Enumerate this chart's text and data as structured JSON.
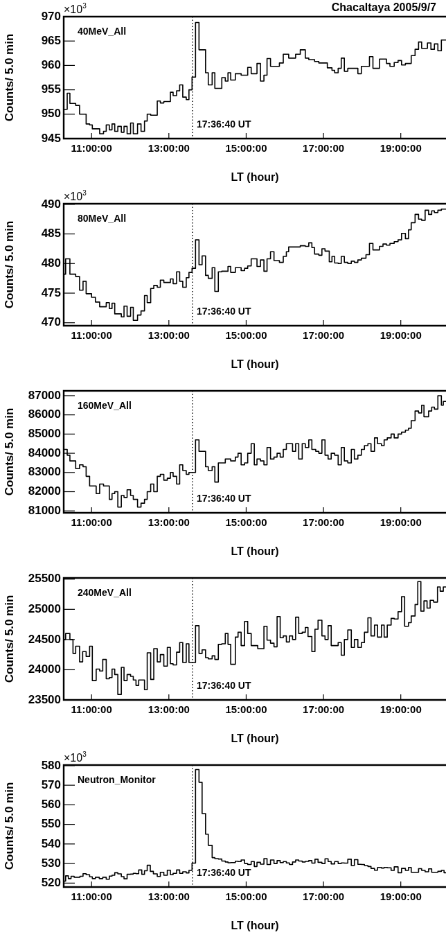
{
  "chart_data": [
    {
      "type": "histogram",
      "title": "Chacaltaya 2005/9/7",
      "subtitle": "40MeV_All",
      "xlabel": "LT (hour)",
      "ylabel": "Counts/ 5.0 min",
      "annotations": [
        "×10$^{3}$",
        "17:36:40 UT"
      ],
      "xlim": [
        10.28,
        20.17
      ],
      "xticks": [
        {
          "value": 11,
          "label": "11:00:00"
        },
        {
          "value": 13,
          "label": "13:00:00"
        },
        {
          "value": 15,
          "label": "15:00:00"
        },
        {
          "value": 17,
          "label": "17:00:00"
        },
        {
          "value": 19,
          "label": "19:00:00"
        }
      ],
      "ylim": [
        945,
        970
      ],
      "yticks": [
        945,
        950,
        955,
        960,
        965,
        970
      ],
      "ref_lines": [
        {
          "axis": "x",
          "value": 13.611,
          "line_style": "dotted",
          "color": "#000000"
        }
      ],
      "bins": [
        10.28,
        10.37,
        10.44,
        10.59,
        10.69,
        10.86,
        10.95,
        11.02,
        11.21,
        11.31,
        11.38,
        11.46,
        11.53,
        11.6,
        11.68,
        11.77,
        11.84,
        11.92,
        12.01,
        12.08,
        12.19,
        12.28,
        12.37,
        12.44,
        12.53,
        12.7,
        12.78,
        12.87,
        13.04,
        13.11,
        13.2,
        13.28,
        13.36,
        13.45,
        13.52,
        13.6,
        13.69,
        13.78,
        13.95,
        14.02,
        14.12,
        14.19,
        14.37,
        14.46,
        14.53,
        14.6,
        14.72,
        14.87,
        15.04,
        15.13,
        15.28,
        15.37,
        15.46,
        15.54,
        15.63,
        15.86,
        15.96,
        16.1,
        16.28,
        16.4,
        16.53,
        16.62,
        16.77,
        16.88,
        17.1,
        17.22,
        17.29,
        17.38,
        17.46,
        17.54,
        17.63,
        17.89,
        17.98,
        18.19,
        18.28,
        18.45,
        18.63,
        18.72,
        18.83,
        18.93,
        19.02,
        19.12,
        19.27,
        19.37,
        19.46,
        19.54,
        19.69,
        19.78,
        19.87,
        19.96,
        20.05,
        20.17
      ],
      "series": [
        {
          "color": "#000000",
          "values": [
            951,
            954.3,
            952.2,
            951.8,
            950,
            948,
            947.8,
            947,
            946,
            946.5,
            947.8,
            946.8,
            948,
            946.5,
            947.5,
            946.3,
            947.5,
            946,
            948.2,
            946,
            948,
            946.5,
            948.6,
            950,
            949.8,
            952.7,
            952.3,
            952.6,
            954.5,
            953.8,
            954.8,
            956,
            953.5,
            953,
            955,
            957.6,
            968.8,
            963.2,
            958.5,
            956,
            958.5,
            955.3,
            957.5,
            956.8,
            958.5,
            957,
            958.3,
            958,
            959.6,
            958.3,
            960.4,
            956.8,
            958,
            961.4,
            959.8,
            960.5,
            962.3,
            961.5,
            962.3,
            963.2,
            961.5,
            961.2,
            960.8,
            960.5,
            959.5,
            959,
            958.5,
            959.4,
            961.5,
            958.8,
            959.4,
            958.3,
            959.8,
            961.8,
            959.4,
            961.3,
            960.4,
            959.8,
            960.6,
            961,
            960.1,
            960.4,
            962,
            963.3,
            964.8,
            963.5,
            964.6,
            963.3,
            964.4,
            963,
            965.2
          ]
        }
      ]
    },
    {
      "type": "histogram",
      "subtitle": "80MeV_All",
      "xlabel": "LT (hour)",
      "ylabel": "Counts/ 5.0 min",
      "annotations": [
        "×10$^{3}$",
        "17:36:40 UT"
      ],
      "xlim": [
        10.28,
        20.17
      ],
      "xticks": [
        {
          "value": 11,
          "label": "11:00:00"
        },
        {
          "value": 13,
          "label": "13:00:00"
        },
        {
          "value": 15,
          "label": "15:00:00"
        },
        {
          "value": 17,
          "label": "17:00:00"
        },
        {
          "value": 19,
          "label": "19:00:00"
        }
      ],
      "ylim": [
        469.5,
        490.1
      ],
      "yticks": [
        470,
        475,
        480,
        485,
        490
      ],
      "ref_lines": [
        {
          "axis": "x",
          "value": 13.611,
          "line_style": "dotted",
          "color": "#000000"
        }
      ],
      "bins": [
        10.28,
        10.33,
        10.44,
        10.59,
        10.69,
        10.78,
        10.86,
        11.0,
        11.1,
        11.21,
        11.38,
        11.46,
        11.53,
        11.6,
        11.77,
        11.84,
        11.92,
        12.01,
        12.08,
        12.19,
        12.28,
        12.37,
        12.44,
        12.53,
        12.61,
        12.7,
        12.78,
        12.87,
        13.04,
        13.11,
        13.2,
        13.28,
        13.36,
        13.45,
        13.52,
        13.6,
        13.69,
        13.78,
        13.86,
        13.95,
        14.02,
        14.12,
        14.19,
        14.28,
        14.37,
        14.53,
        14.6,
        14.72,
        14.87,
        14.96,
        15.04,
        15.13,
        15.28,
        15.37,
        15.46,
        15.54,
        15.63,
        15.72,
        15.86,
        15.96,
        16.04,
        16.1,
        16.4,
        16.53,
        16.62,
        16.7,
        16.77,
        16.88,
        16.96,
        17.04,
        17.15,
        17.22,
        17.29,
        17.38,
        17.46,
        17.54,
        17.63,
        17.72,
        17.8,
        17.89,
        17.98,
        18.1,
        18.19,
        18.28,
        18.45,
        18.54,
        18.63,
        18.72,
        18.83,
        18.93,
        19.02,
        19.12,
        19.2,
        19.27,
        19.37,
        19.46,
        19.54,
        19.63,
        19.72,
        19.8,
        19.87,
        19.96,
        20.05,
        20.17
      ],
      "series": [
        {
          "color": "#000000",
          "values": [
            478.2,
            480.8,
            478.2,
            477.8,
            475.5,
            477,
            474.9,
            474.3,
            473.5,
            472.7,
            473.4,
            472.4,
            473.3,
            471.5,
            471,
            472.8,
            471.1,
            472.6,
            470.4,
            471.3,
            472,
            474.6,
            473.4,
            475.8,
            476.3,
            476,
            477.2,
            476.8,
            477.4,
            476.6,
            478.6,
            477,
            476,
            477.6,
            478.5,
            479.2,
            484,
            479.8,
            481.3,
            478,
            477.5,
            479.3,
            475.3,
            478.6,
            478.7,
            479.5,
            478.5,
            479.3,
            478.8,
            479.2,
            479.6,
            480.8,
            479.5,
            480.6,
            478.7,
            480.8,
            482,
            480.5,
            480.2,
            481.2,
            482,
            482.8,
            483,
            482.9,
            483.5,
            482.7,
            481.6,
            481.4,
            482.5,
            482.1,
            480.3,
            481.2,
            480.1,
            480,
            481.2,
            480.2,
            480,
            480.4,
            480.2,
            480.6,
            480.9,
            481.5,
            483.4,
            482.3,
            482.9,
            483.3,
            483.1,
            483.4,
            483.7,
            484,
            485.1,
            484.2,
            485.7,
            486.9,
            488.3,
            487.5,
            487.3,
            489,
            488.3,
            488.9,
            488.6,
            489,
            489.2
          ]
        }
      ]
    },
    {
      "type": "histogram",
      "subtitle": "160MeV_All",
      "xlabel": "LT (hour)",
      "ylabel": "Counts/ 5.0 min",
      "annotations": [
        "17:36:40 UT"
      ],
      "xlim": [
        10.28,
        20.17
      ],
      "xticks": [
        {
          "value": 11,
          "label": "11:00:00"
        },
        {
          "value": 13,
          "label": "13:00:00"
        },
        {
          "value": 15,
          "label": "15:00:00"
        },
        {
          "value": 17,
          "label": "17:00:00"
        },
        {
          "value": 19,
          "label": "19:00:00"
        }
      ],
      "ylim": [
        80900,
        87250
      ],
      "yticks": [
        81000,
        82000,
        83000,
        84000,
        85000,
        86000,
        87000
      ],
      "ref_lines": [
        {
          "axis": "x",
          "value": 13.611,
          "line_style": "dotted",
          "color": "#000000"
        }
      ],
      "bins": [
        10.28,
        10.37,
        10.44,
        10.59,
        10.69,
        10.78,
        10.86,
        10.95,
        11.02,
        11.12,
        11.21,
        11.31,
        11.46,
        11.53,
        11.6,
        11.68,
        11.77,
        11.84,
        11.92,
        12.01,
        12.08,
        12.19,
        12.28,
        12.37,
        12.44,
        12.53,
        12.61,
        12.7,
        12.78,
        12.87,
        12.96,
        13.04,
        13.11,
        13.2,
        13.28,
        13.36,
        13.45,
        13.52,
        13.6,
        13.69,
        13.78,
        13.95,
        14.02,
        14.12,
        14.19,
        14.28,
        14.46,
        14.6,
        14.72,
        14.79,
        14.87,
        14.96,
        15.04,
        15.13,
        15.21,
        15.28,
        15.37,
        15.46,
        15.54,
        15.63,
        15.72,
        15.8,
        15.88,
        15.96,
        16.04,
        16.12,
        16.2,
        16.28,
        16.36,
        16.45,
        16.53,
        16.62,
        16.7,
        16.8,
        16.88,
        16.96,
        17.04,
        17.12,
        17.2,
        17.29,
        17.38,
        17.46,
        17.54,
        17.63,
        17.72,
        17.8,
        17.89,
        17.98,
        18.06,
        18.15,
        18.23,
        18.32,
        18.4,
        18.5,
        18.57,
        18.65,
        18.75,
        18.83,
        18.93,
        19.02,
        19.12,
        19.2,
        19.27,
        19.37,
        19.46,
        19.54,
        19.6,
        19.72,
        19.8,
        19.87,
        19.96,
        20.05,
        20.1,
        20.17
      ],
      "series": [
        {
          "color": "#000000",
          "values": [
            84200,
            83900,
            83600,
            83200,
            83400,
            83300,
            82800,
            82300,
            82300,
            81900,
            82400,
            82300,
            81600,
            81900,
            82000,
            81200,
            81800,
            81700,
            82100,
            81800,
            81600,
            81200,
            81400,
            81600,
            82000,
            82400,
            82000,
            82800,
            82900,
            82600,
            82700,
            83000,
            82800,
            82400,
            83400,
            83100,
            82900,
            83000,
            83000,
            84700,
            84100,
            83300,
            83100,
            83300,
            82500,
            83500,
            83700,
            83600,
            83800,
            84000,
            83400,
            83500,
            84000,
            84500,
            83400,
            83700,
            83600,
            83400,
            84300,
            83700,
            83800,
            84000,
            83800,
            84200,
            84500,
            84500,
            84100,
            84500,
            83700,
            84500,
            84300,
            84700,
            84200,
            84100,
            84000,
            84700,
            83900,
            83700,
            84000,
            83900,
            83400,
            84300,
            83600,
            83500,
            84200,
            83700,
            83900,
            84200,
            84400,
            84500,
            84100,
            84800,
            84500,
            84400,
            84700,
            84800,
            85000,
            84800,
            85000,
            85100,
            85200,
            85300,
            85700,
            86200,
            86100,
            86500,
            85900,
            86200,
            86400,
            86300,
            87000,
            86500,
            86700
          ]
        }
      ]
    },
    {
      "type": "histogram",
      "subtitle": "240MeV_All",
      "xlabel": "LT (hour)",
      "ylabel": "Counts/ 5.0 min",
      "annotations": [
        "17:36:40 UT"
      ],
      "xlim": [
        10.28,
        20.17
      ],
      "xticks": [
        {
          "value": 11,
          "label": "11:00:00"
        },
        {
          "value": 13,
          "label": "13:00:00"
        },
        {
          "value": 15,
          "label": "15:00:00"
        },
        {
          "value": 17,
          "label": "17:00:00"
        },
        {
          "value": 19,
          "label": "19:00:00"
        }
      ],
      "ylim": [
        23500,
        25520
      ],
      "yticks": [
        23500,
        24000,
        24500,
        25000,
        25500
      ],
      "ref_lines": [
        {
          "axis": "x",
          "value": 13.611,
          "line_style": "dotted",
          "color": "#000000"
        }
      ],
      "bins": [
        10.28,
        10.33,
        10.44,
        10.52,
        10.59,
        10.69,
        10.77,
        10.86,
        10.95,
        11.02,
        11.12,
        11.21,
        11.29,
        11.38,
        11.46,
        11.53,
        11.6,
        11.68,
        11.77,
        11.84,
        11.92,
        12.01,
        12.08,
        12.15,
        12.22,
        12.28,
        12.37,
        12.44,
        12.53,
        12.61,
        12.7,
        12.78,
        12.87,
        12.96,
        13.04,
        13.11,
        13.2,
        13.28,
        13.36,
        13.45,
        13.52,
        13.6,
        13.69,
        13.78,
        13.86,
        13.95,
        14.02,
        14.12,
        14.19,
        14.28,
        14.37,
        14.46,
        14.53,
        14.6,
        14.72,
        14.79,
        14.87,
        14.96,
        15.04,
        15.13,
        15.3,
        15.46,
        15.54,
        15.63,
        15.72,
        15.8,
        15.88,
        15.96,
        16.04,
        16.12,
        16.2,
        16.28,
        16.36,
        16.45,
        16.53,
        16.6,
        16.7,
        16.78,
        16.86,
        16.96,
        17.04,
        17.12,
        17.2,
        17.38,
        17.46,
        17.54,
        17.63,
        17.72,
        17.8,
        17.89,
        17.98,
        18.06,
        18.15,
        18.23,
        18.32,
        18.4,
        18.5,
        18.57,
        18.65,
        18.75,
        18.83,
        18.93,
        19.02,
        19.1,
        19.2,
        19.27,
        19.37,
        19.44,
        19.52,
        19.6,
        19.68,
        19.76,
        19.85,
        19.95,
        20.02,
        20.1,
        20.17
      ],
      "series": [
        {
          "color": "#000000",
          "values": [
            24500,
            24600,
            24500,
            24270,
            24390,
            24130,
            24300,
            24220,
            24390,
            23820,
            24010,
            23980,
            24170,
            23850,
            23870,
            24010,
            23920,
            23590,
            24040,
            23820,
            23920,
            23890,
            23830,
            23740,
            23830,
            23830,
            23670,
            24280,
            23840,
            24350,
            24130,
            24250,
            24060,
            24370,
            24100,
            24080,
            24290,
            24450,
            24120,
            24430,
            24120,
            24120,
            24730,
            24270,
            24330,
            24200,
            24180,
            24230,
            24170,
            24420,
            24430,
            24600,
            24420,
            24090,
            24540,
            24620,
            24400,
            24800,
            24600,
            24400,
            24350,
            24720,
            24490,
            24440,
            24380,
            24880,
            24530,
            24560,
            24460,
            24560,
            24500,
            24870,
            24600,
            24620,
            24700,
            24550,
            24300,
            24670,
            24820,
            24560,
            24500,
            24730,
            24400,
            24450,
            24240,
            24500,
            24660,
            24370,
            24500,
            24370,
            24450,
            24620,
            24860,
            24560,
            24740,
            24540,
            24740,
            24540,
            24740,
            24850,
            24840,
            24960,
            25210,
            24720,
            24780,
            24890,
            25080,
            25460,
            24970,
            25140,
            25020,
            25150,
            25120,
            25370,
            25300,
            25370
          ]
        }
      ]
    },
    {
      "type": "histogram",
      "subtitle": "Neutron_Monitor",
      "xlabel": "LT (hour)",
      "ylabel": "Counts/ 5.0 min",
      "annotations": [
        "×10$^{3}$",
        "17:36:40 UT"
      ],
      "xlim": [
        10.28,
        20.17
      ],
      "xticks": [
        {
          "value": 11,
          "label": "11:00:00"
        },
        {
          "value": 13,
          "label": "13:00:00"
        },
        {
          "value": 15,
          "label": "15:00:00"
        },
        {
          "value": 17,
          "label": "17:00:00"
        },
        {
          "value": 19,
          "label": "19:00:00"
        }
      ],
      "ylim": [
        518,
        580.3
      ],
      "yticks": [
        520,
        530,
        540,
        550,
        560,
        570,
        580
      ],
      "ref_lines": [
        {
          "axis": "x",
          "value": 13.611,
          "line_style": "dotted",
          "color": "#000000"
        }
      ],
      "bins": [
        10.28,
        10.33,
        10.4,
        10.47,
        10.55,
        10.7,
        10.78,
        10.86,
        10.95,
        11.02,
        11.1,
        11.2,
        11.29,
        11.38,
        11.46,
        11.53,
        11.6,
        11.68,
        11.77,
        11.84,
        11.92,
        12.01,
        12.08,
        12.15,
        12.22,
        12.3,
        12.37,
        12.44,
        12.52,
        12.6,
        12.7,
        12.78,
        12.87,
        12.96,
        13.04,
        13.11,
        13.2,
        13.28,
        13.36,
        13.45,
        13.52,
        13.6,
        13.69,
        13.78,
        13.86,
        13.95,
        14.02,
        14.12,
        14.19,
        14.28,
        14.37,
        14.46,
        14.53,
        14.6,
        14.72,
        14.79,
        14.87,
        14.96,
        15.04,
        15.13,
        15.21,
        15.28,
        15.37,
        15.46,
        15.54,
        15.63,
        15.72,
        15.8,
        15.88,
        15.96,
        16.04,
        16.12,
        16.2,
        16.28,
        16.36,
        16.45,
        16.53,
        16.62,
        16.7,
        16.78,
        16.86,
        16.96,
        17.04,
        17.12,
        17.2,
        17.29,
        17.38,
        17.46,
        17.54,
        17.63,
        17.72,
        17.8,
        17.89,
        17.98,
        18.06,
        18.15,
        18.23,
        18.32,
        18.4,
        18.5,
        18.57,
        18.65,
        18.75,
        18.83,
        18.93,
        19.02,
        19.12,
        19.2,
        19.27,
        19.37,
        19.46,
        19.54,
        19.63,
        19.72,
        19.8,
        19.87,
        19.96,
        20.05,
        20.12,
        20.17
      ],
      "series": [
        {
          "color": "#000000",
          "values": [
            521,
            523.7,
            522.3,
            523.5,
            523,
            523.5,
            524.8,
            524.3,
            523.2,
            522.3,
            523,
            522.3,
            523,
            522,
            523.6,
            524,
            525.3,
            524.7,
            523.3,
            522.2,
            524.5,
            524.6,
            525,
            524.8,
            526.7,
            524.5,
            526.3,
            529.1,
            526,
            524.7,
            523.4,
            525.5,
            524,
            526.6,
            524.3,
            525,
            526.7,
            525,
            525.8,
            525.2,
            526.5,
            530.2,
            578,
            571.5,
            555.5,
            545,
            539.3,
            533,
            532.5,
            532.3,
            531.3,
            530.8,
            530.4,
            530.5,
            531.2,
            531,
            531.8,
            530,
            529.5,
            531,
            528.5,
            530.6,
            529.7,
            532.5,
            529.5,
            531.8,
            530,
            531.5,
            530.5,
            531,
            530.3,
            529.5,
            530.8,
            531.8,
            531.3,
            530.8,
            531.1,
            531.5,
            530.2,
            532.2,
            530.6,
            530,
            532.4,
            531,
            529.8,
            531,
            530,
            530.3,
            530.2,
            532.2,
            529,
            532,
            529.6,
            529.5,
            529,
            528.5,
            527.5,
            526.6,
            528,
            527.7,
            528,
            527.8,
            526.5,
            528.3,
            525.3,
            527.5,
            526.5,
            528,
            525.5,
            525.5,
            527.4,
            526.5,
            525.8,
            527.3,
            525.5,
            525.5,
            526,
            526.5,
            525.3
          ]
        }
      ]
    }
  ]
}
